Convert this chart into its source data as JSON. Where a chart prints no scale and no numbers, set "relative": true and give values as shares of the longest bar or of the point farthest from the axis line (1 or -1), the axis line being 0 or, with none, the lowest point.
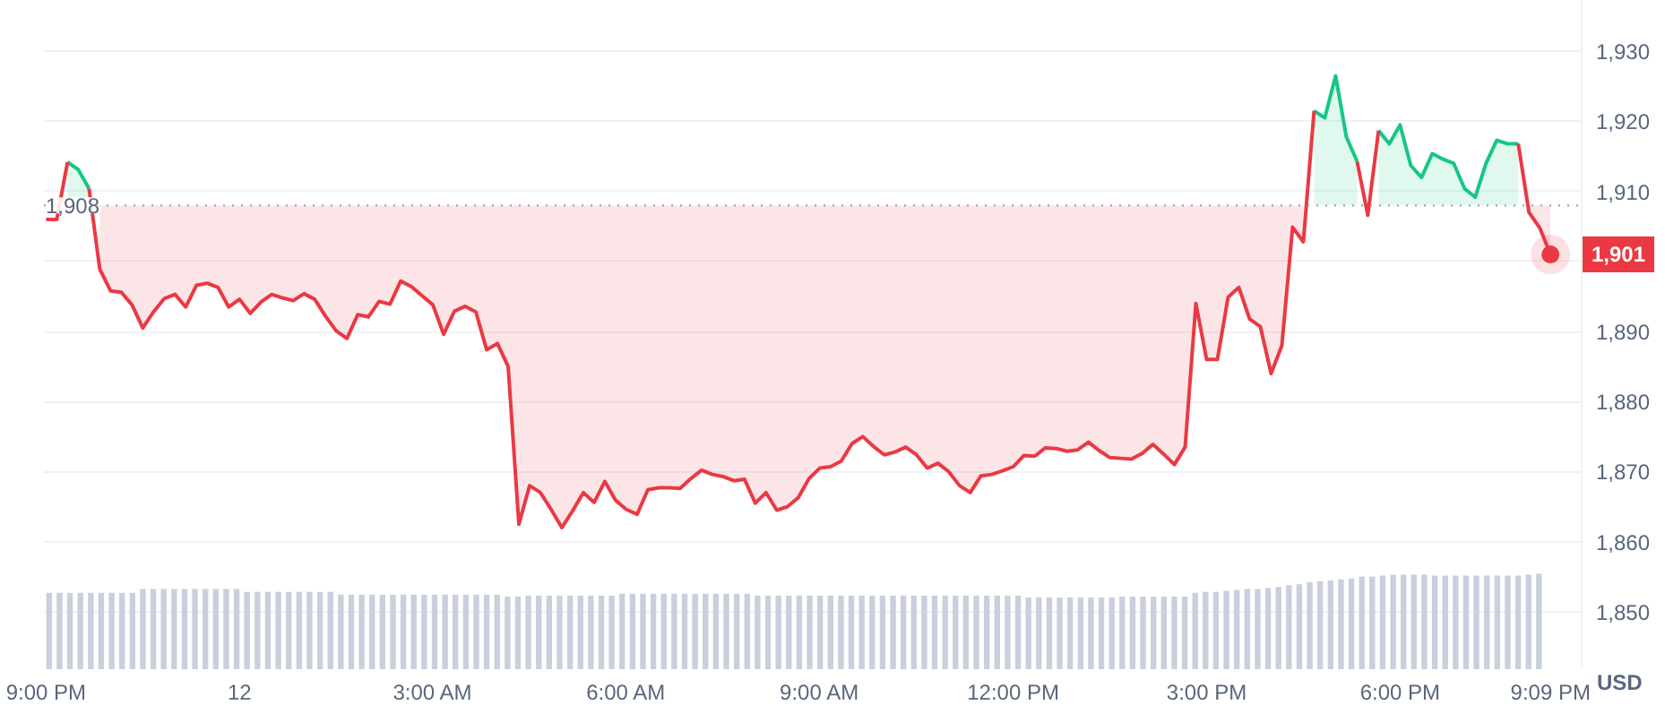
{
  "chart_data": [
    {
      "type": "line",
      "categories": [
        "9:00 PM",
        null,
        null,
        null,
        null,
        null,
        null,
        null,
        null,
        null,
        null,
        null,
        null,
        null,
        null,
        null,
        null,
        null,
        "12",
        null,
        null,
        null,
        null,
        null,
        null,
        null,
        null,
        null,
        null,
        null,
        null,
        null,
        null,
        null,
        null,
        null,
        "3:00 AM",
        null,
        null,
        null,
        null,
        null,
        null,
        null,
        null,
        null,
        null,
        null,
        null,
        null,
        null,
        null,
        null,
        null,
        "6:00 AM",
        null,
        null,
        null,
        null,
        null,
        null,
        null,
        null,
        null,
        null,
        null,
        null,
        null,
        null,
        null,
        null,
        null,
        "9:00 AM",
        null,
        null,
        null,
        null,
        null,
        null,
        null,
        null,
        null,
        null,
        null,
        null,
        null,
        null,
        null,
        null,
        null,
        "12:00 PM",
        null,
        null,
        null,
        null,
        null,
        null,
        null,
        null,
        null,
        null,
        null,
        null,
        null,
        null,
        null,
        null,
        null,
        "3:00 PM",
        null,
        null,
        null,
        null,
        null,
        null,
        null,
        null,
        null,
        null,
        null,
        null,
        null,
        null,
        null,
        null,
        null,
        "6:00 PM",
        null,
        null,
        null,
        null,
        null,
        null,
        null,
        null,
        null,
        null,
        null,
        null,
        null,
        "9:09 PM"
      ],
      "series": [
        {
          "color": "#16c784",
          "values": [
            null,
            null,
            1914.2,
            1913.1,
            1910.4,
            null,
            null,
            null,
            null,
            null,
            null,
            null,
            null,
            null,
            null,
            null,
            null,
            null,
            null,
            null,
            null,
            null,
            null,
            null,
            null,
            null,
            null,
            null,
            null,
            null,
            null,
            null,
            null,
            null,
            null,
            null,
            null,
            null,
            null,
            null,
            null,
            null,
            null,
            null,
            null,
            null,
            null,
            null,
            null,
            null,
            null,
            null,
            null,
            null,
            null,
            null,
            null,
            null,
            null,
            null,
            null,
            null,
            null,
            null,
            null,
            null,
            null,
            null,
            null,
            null,
            null,
            null,
            null,
            null,
            null,
            null,
            null,
            null,
            null,
            null,
            null,
            null,
            null,
            null,
            null,
            null,
            null,
            null,
            null,
            null,
            null,
            null,
            null,
            null,
            null,
            null,
            null,
            null,
            null,
            null,
            null,
            null,
            null,
            null,
            null,
            null,
            null,
            null,
            null,
            null,
            null,
            null,
            null,
            null,
            null,
            null,
            null,
            null,
            1921.5,
            1920.5,
            1926.5,
            1917.8,
            1914.3,
            null,
            1918.7,
            1916.8,
            1919.5,
            1913.7,
            1912.0,
            1915.4,
            1914.6,
            1914.0,
            1910.4,
            1909.2,
            1914.0,
            1917.3,
            1916.8,
            1916.8,
            null,
            null,
            null
          ],
          "lower": [
            null,
            null,
            1908,
            1908,
            1908,
            null,
            null,
            null,
            null,
            null,
            null,
            null,
            null,
            null,
            null,
            null,
            null,
            null,
            null,
            null,
            null,
            null,
            null,
            null,
            null,
            null,
            null,
            null,
            null,
            null,
            null,
            null,
            null,
            null,
            null,
            null,
            null,
            null,
            null,
            null,
            null,
            null,
            null,
            null,
            null,
            null,
            null,
            null,
            null,
            null,
            null,
            null,
            null,
            null,
            null,
            null,
            null,
            null,
            null,
            null,
            null,
            null,
            null,
            null,
            null,
            null,
            null,
            null,
            null,
            null,
            null,
            null,
            null,
            null,
            null,
            null,
            null,
            null,
            null,
            null,
            null,
            null,
            null,
            null,
            null,
            null,
            null,
            null,
            null,
            null,
            null,
            null,
            null,
            null,
            null,
            null,
            null,
            null,
            null,
            null,
            null,
            null,
            null,
            null,
            null,
            null,
            null,
            null,
            null,
            null,
            null,
            null,
            null,
            null,
            null,
            null,
            null,
            null,
            1908,
            1908,
            1908,
            1908,
            1908,
            null,
            1908,
            1908,
            1908,
            1908,
            1908,
            1908,
            1908,
            1908,
            1908,
            1908,
            1908,
            1908,
            1908,
            1908,
            null,
            null,
            null
          ],
          "upper": [
            null,
            null,
            1914.2,
            1913.1,
            1910.4,
            null,
            null,
            null,
            null,
            null,
            null,
            null,
            null,
            null,
            null,
            null,
            null,
            null,
            null,
            null,
            null,
            null,
            null,
            null,
            null,
            null,
            null,
            null,
            null,
            null,
            null,
            null,
            null,
            null,
            null,
            null,
            null,
            null,
            null,
            null,
            null,
            null,
            null,
            null,
            null,
            null,
            null,
            null,
            null,
            null,
            null,
            null,
            null,
            null,
            null,
            null,
            null,
            null,
            null,
            null,
            null,
            null,
            null,
            null,
            null,
            null,
            null,
            null,
            null,
            null,
            null,
            null,
            null,
            null,
            null,
            null,
            null,
            null,
            null,
            null,
            null,
            null,
            null,
            null,
            null,
            null,
            null,
            null,
            null,
            null,
            null,
            null,
            null,
            null,
            null,
            null,
            null,
            null,
            null,
            null,
            null,
            null,
            null,
            null,
            null,
            null,
            null,
            null,
            null,
            null,
            null,
            null,
            null,
            null,
            null,
            null,
            null,
            null,
            1921.5,
            1920.5,
            1926.5,
            1917.8,
            1914.3,
            null,
            1918.7,
            1916.8,
            1919.5,
            1913.7,
            1912.0,
            1915.4,
            1914.6,
            1914.0,
            1910.4,
            1909.2,
            1914.0,
            1917.3,
            1916.8,
            1916.8,
            null,
            null,
            null
          ]
        },
        {
          "color": "#ea3943",
          "values": [
            1906.0,
            1906.0,
            1914.2,
            null,
            1910.4,
            1898.9,
            1895.8,
            1895.6,
            1893.8,
            1890.5,
            1892.8,
            1894.7,
            1895.3,
            1893.5,
            1896.6,
            1896.9,
            1896.3,
            1893.5,
            1894.6,
            1892.6,
            1894.2,
            1895.3,
            1894.8,
            1894.4,
            1895.4,
            1894.6,
            1892.2,
            1890.1,
            1889.0,
            1892.4,
            1892.1,
            1894.3,
            1893.9,
            1897.2,
            1896.4,
            1895.1,
            1893.8,
            1889.6,
            1892.9,
            1893.6,
            1892.8,
            1887.4,
            1888.3,
            1885.0,
            1862.5,
            1868.0,
            1867.0,
            1864.6,
            1862.0,
            1864.4,
            1867.0,
            1865.6,
            1868.6,
            1865.9,
            1864.6,
            1863.9,
            1867.4,
            1867.7,
            1867.7,
            1867.6,
            1869.0,
            1870.2,
            1869.6,
            1869.3,
            1868.7,
            1868.9,
            1865.5,
            1867.0,
            1864.5,
            1865.0,
            1866.3,
            1869.0,
            1870.5,
            1870.7,
            1871.5,
            1874.0,
            1875.0,
            1873.6,
            1872.4,
            1872.8,
            1873.5,
            1872.4,
            1870.5,
            1871.2,
            1870.0,
            1868.0,
            1867.0,
            1869.4,
            1869.6,
            1870.1,
            1870.7,
            1872.3,
            1872.2,
            1873.4,
            1873.3,
            1872.9,
            1873.1,
            1874.2,
            1873.0,
            1872.0,
            1871.9,
            1871.8,
            1872.6,
            1873.9,
            1872.5,
            1871.0,
            1873.5,
            1894.0,
            1886.0,
            1886.0,
            1894.9,
            1896.3,
            1891.8,
            1890.7,
            1884.0,
            1888.0,
            1904.9,
            1902.8,
            1921.5,
            null,
            null,
            null,
            1914.3,
            1906.6,
            1918.7,
            null,
            null,
            null,
            null,
            null,
            null,
            null,
            null,
            null,
            null,
            null,
            null,
            1916.8,
            1907.0,
            1904.8,
            1901.0
          ],
          "lower": [
            null,
            null,
            null,
            null,
            null,
            1898.9,
            1895.8,
            1895.6,
            1893.8,
            1890.5,
            1892.8,
            1894.7,
            1895.3,
            1893.5,
            1896.6,
            1896.9,
            1896.3,
            1893.5,
            1894.6,
            1892.6,
            1894.2,
            1895.3,
            1894.8,
            1894.4,
            1895.4,
            1894.6,
            1892.2,
            1890.1,
            1889.0,
            1892.4,
            1892.1,
            1894.3,
            1893.9,
            1897.2,
            1896.4,
            1895.1,
            1893.8,
            1889.6,
            1892.9,
            1893.6,
            1892.8,
            1887.4,
            1888.3,
            1885.0,
            1862.5,
            1868.0,
            1867.0,
            1864.6,
            1862.0,
            1864.4,
            1867.0,
            1865.6,
            1868.6,
            1865.9,
            1864.6,
            1863.9,
            1867.4,
            1867.7,
            1867.7,
            1867.6,
            1869.0,
            1870.2,
            1869.6,
            1869.3,
            1868.7,
            1868.9,
            1865.5,
            1867.0,
            1864.5,
            1865.0,
            1866.3,
            1869.0,
            1870.5,
            1870.7,
            1871.5,
            1874.0,
            1875.0,
            1873.6,
            1872.4,
            1872.8,
            1873.5,
            1872.4,
            1870.5,
            1871.2,
            1870.0,
            1868.0,
            1867.0,
            1869.4,
            1869.6,
            1870.1,
            1870.7,
            1872.3,
            1872.2,
            1873.4,
            1873.3,
            1872.9,
            1873.1,
            1874.2,
            1873.0,
            1872.0,
            1871.9,
            1871.8,
            1872.6,
            1873.9,
            1872.5,
            1871.0,
            1873.5,
            1894.0,
            1886.0,
            1886.0,
            1894.9,
            1896.3,
            1891.8,
            1890.7,
            1884.0,
            1888.0,
            1904.9,
            1902.8,
            null,
            null,
            null,
            null,
            null,
            null,
            null,
            null,
            null,
            null,
            null,
            null,
            null,
            null,
            null,
            null,
            null,
            null,
            null,
            null,
            1907.0,
            1904.8,
            1901.0
          ],
          "upper": [
            null,
            null,
            null,
            null,
            null,
            1908,
            1908,
            1908,
            1908,
            1908,
            1908,
            1908,
            1908,
            1908,
            1908,
            1908,
            1908,
            1908,
            1908,
            1908,
            1908,
            1908,
            1908,
            1908,
            1908,
            1908,
            1908,
            1908,
            1908,
            1908,
            1908,
            1908,
            1908,
            1908,
            1908,
            1908,
            1908,
            1908,
            1908,
            1908,
            1908,
            1908,
            1908,
            1908,
            1908,
            1908,
            1908,
            1908,
            1908,
            1908,
            1908,
            1908,
            1908,
            1908,
            1908,
            1908,
            1908,
            1908,
            1908,
            1908,
            1908,
            1908,
            1908,
            1908,
            1908,
            1908,
            1908,
            1908,
            1908,
            1908,
            1908,
            1908,
            1908,
            1908,
            1908,
            1908,
            1908,
            1908,
            1908,
            1908,
            1908,
            1908,
            1908,
            1908,
            1908,
            1908,
            1908,
            1908,
            1908,
            1908,
            1908,
            1908,
            1908,
            1908,
            1908,
            1908,
            1908,
            1908,
            1908,
            1908,
            1908,
            1908,
            1908,
            1908,
            1908,
            1908,
            1908,
            1908,
            1908,
            1908,
            1908,
            1908,
            1908,
            1908,
            1908,
            1908,
            1908,
            1908,
            null,
            null,
            null,
            null,
            null,
            null,
            null,
            null,
            null,
            null,
            null,
            null,
            null,
            null,
            null,
            null,
            null,
            null,
            null,
            null,
            1908,
            1908,
            1908
          ]
        }
      ],
      "ylim": [
        1841.8,
        1937.2
      ],
      "yticks": [
        {
          "value": 1850,
          "label": "1,850"
        },
        {
          "value": 1860,
          "label": "1,860"
        },
        {
          "value": 1870,
          "label": "1,870"
        },
        {
          "value": 1880,
          "label": "1,880"
        },
        {
          "value": 1890,
          "label": "1,890"
        },
        {
          "value": 1900,
          "label": null
        },
        {
          "value": 1910,
          "label": "1,910"
        },
        {
          "value": 1920,
          "label": "1,920"
        },
        {
          "value": 1930,
          "label": "1,930"
        }
      ],
      "ylabel": "USD",
      "grid": "y",
      "ref_lines": [
        {
          "axis": "y",
          "value": 1908,
          "label": "1,908",
          "color": "#9aa3b5",
          "line_style": "dotted"
        }
      ],
      "annotations": [
        {
          "text": "1,901",
          "x": "9:09 PM",
          "y": 1901
        }
      ]
    },
    {
      "type": "bar",
      "relative": true,
      "color": "#c9cfdc",
      "categories": [
        null,
        null,
        null,
        null,
        null,
        null,
        null,
        null,
        null,
        null,
        null,
        null,
        null,
        null,
        null,
        null,
        null,
        null,
        null,
        null,
        null,
        null,
        null,
        null,
        null,
        null,
        null,
        null,
        null,
        null,
        null,
        null,
        null,
        null,
        null,
        null,
        null,
        null,
        null,
        null,
        null,
        null,
        null,
        null,
        null,
        null,
        null,
        null,
        null,
        null,
        null,
        null,
        null,
        null,
        null,
        null,
        null,
        null,
        null,
        null,
        null,
        null,
        null,
        null,
        null,
        null,
        null,
        null,
        null,
        null,
        null,
        null,
        null,
        null,
        null,
        null,
        null,
        null,
        null,
        null,
        null,
        null,
        null,
        null,
        null,
        null,
        null,
        null,
        null,
        null,
        null,
        null,
        null,
        null,
        null,
        null,
        null,
        null,
        null,
        null,
        null,
        null,
        null,
        null,
        null,
        null,
        null,
        null,
        null,
        null,
        null,
        null,
        null,
        null,
        null,
        null,
        null,
        null,
        null,
        null,
        null,
        null,
        null,
        null,
        null,
        null,
        null,
        null,
        null,
        null,
        null,
        null,
        null,
        null,
        null,
        null,
        null,
        null,
        null,
        null,
        null,
        null,
        null,
        null
      ],
      "values": [
        0.8,
        0.8,
        0.8,
        0.8,
        0.8,
        0.8,
        0.8,
        0.8,
        0.8,
        0.84,
        0.84,
        0.84,
        0.84,
        0.84,
        0.84,
        0.84,
        0.84,
        0.84,
        0.84,
        0.81,
        0.81,
        0.81,
        0.81,
        0.81,
        0.81,
        0.81,
        0.81,
        0.81,
        0.78,
        0.78,
        0.78,
        0.78,
        0.78,
        0.78,
        0.78,
        0.78,
        0.78,
        0.78,
        0.78,
        0.78,
        0.78,
        0.78,
        0.78,
        0.78,
        0.76,
        0.76,
        0.77,
        0.77,
        0.77,
        0.77,
        0.77,
        0.77,
        0.77,
        0.77,
        0.77,
        0.79,
        0.79,
        0.79,
        0.79,
        0.79,
        0.79,
        0.79,
        0.79,
        0.79,
        0.79,
        0.79,
        0.79,
        0.79,
        0.77,
        0.77,
        0.77,
        0.77,
        0.77,
        0.77,
        0.77,
        0.77,
        0.77,
        0.77,
        0.77,
        0.77,
        0.77,
        0.77,
        0.77,
        0.77,
        0.77,
        0.77,
        0.77,
        0.77,
        0.77,
        0.77,
        0.77,
        0.77,
        0.77,
        0.77,
        0.75,
        0.75,
        0.75,
        0.75,
        0.75,
        0.75,
        0.75,
        0.75,
        0.75,
        0.76,
        0.76,
        0.76,
        0.76,
        0.76,
        0.76,
        0.76,
        0.8,
        0.81,
        0.81,
        0.82,
        0.83,
        0.84,
        0.84,
        0.85,
        0.86,
        0.88,
        0.89,
        0.91,
        0.92,
        0.93,
        0.94,
        0.95,
        0.97,
        0.97,
        0.98,
        0.99,
        0.99,
        0.99,
        0.99,
        0.98,
        0.98,
        0.98,
        0.98,
        0.98,
        0.98,
        0.98,
        0.98,
        0.98,
        0.99,
        1.0
      ]
    }
  ]
}
